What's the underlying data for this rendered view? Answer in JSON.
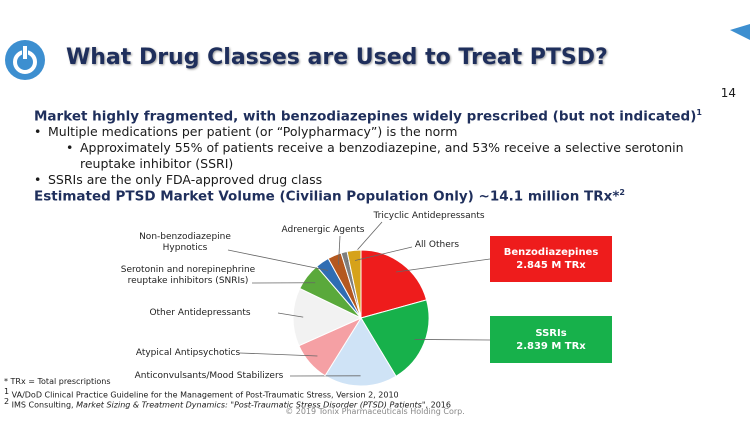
{
  "header": {
    "title": "What Drug Classes are Used to Treat PTSD?",
    "page_number": "14"
  },
  "body": {
    "heading": "Market highly fragmented, with benzodiazepines widely prescribed (but not indicated)",
    "heading_sup": "1",
    "bullets": [
      {
        "text": "Multiple medications per patient (or “Polypharmacy”) is the norm",
        "sub": [
          "Approximately 55% of patients receive a benzodiazepine, and 53% receive a selective serotonin reuptake inhibitor (SSRI)"
        ]
      },
      {
        "text": "SSRIs are the only FDA-approved drug class"
      }
    ],
    "subheading": "Estimated PTSD Market Volume (Civilian Population Only) ~14.1 million TRx*",
    "subheading_sup": "2"
  },
  "chart_data": {
    "type": "pie",
    "categories": [
      "Benzodiazepines",
      "SSRIs",
      "Anticonvulsants/Mood Stabilizers",
      "Atypical Antipsychotics",
      "Other Antidepressants",
      "Serotonin and norepinephrine reuptake inhibitors (SNRIs)",
      "Non-benzodiazepine Hypnotics",
      "Adrenergic Agents",
      "Tricyclic Antidepressants",
      "All Others"
    ],
    "values": [
      2.845,
      2.839,
      2.4,
      1.3,
      1.9,
      0.9,
      0.45,
      0.45,
      0.2,
      0.45
    ],
    "value_labels": [
      "2.845 M TRx",
      "2.839 M TRx",
      null,
      null,
      null,
      null,
      null,
      null,
      null,
      null
    ],
    "colors": [
      "#ee1c1c",
      "#17b14b",
      "#cfe3f6",
      "#f5a0a4",
      "#f2f2f2",
      "#5aa93b",
      "#2f6db3",
      "#b4581f",
      "#7f7f7f",
      "#d6a21a"
    ]
  },
  "footnotes": [
    {
      "text": "* TRx = Total prescriptions"
    },
    {
      "sup": "1",
      "text": "VA/DoD Clinical Practice Guideline for the Management of Post-Traumatic Stress, Version 2, 2010"
    },
    {
      "sup": "2",
      "text": "IMS Consulting, ",
      "italic": "Market Sizing & Treatment Dynamics: \"Post-Traumatic Stress Disorder (PTSD) Patients\"",
      "end": ", 2016"
    }
  ],
  "copyright": "© 2019 Tonix Pharmaceuticals Holding Corp."
}
